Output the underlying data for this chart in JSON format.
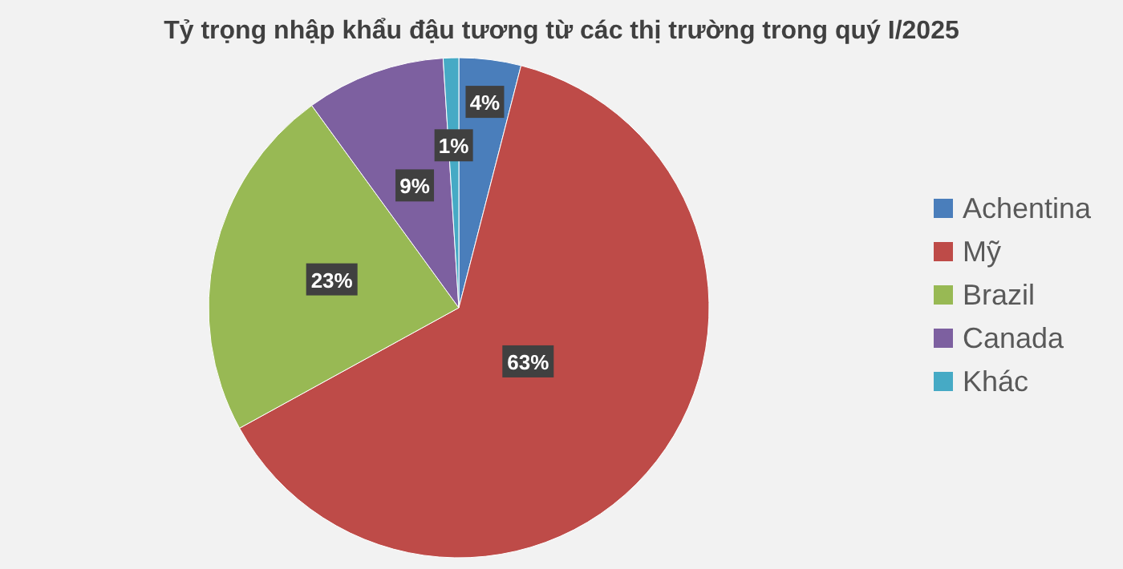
{
  "chart_data": {
    "type": "pie",
    "title": "Tỷ trọng nhập khẩu đậu tương từ các thị trường trong quý I/2025",
    "categories": [
      "Achentina",
      "Mỹ",
      "Brazil",
      "Canada",
      "Khác"
    ],
    "values": [
      4,
      63,
      23,
      9,
      1
    ],
    "colors": [
      "#4a7ebb",
      "#be4b48",
      "#98b954",
      "#7d60a0",
      "#46aac5"
    ],
    "value_labels": [
      "4%",
      "63%",
      "23%",
      "9%",
      "1%"
    ],
    "legend": "right"
  }
}
